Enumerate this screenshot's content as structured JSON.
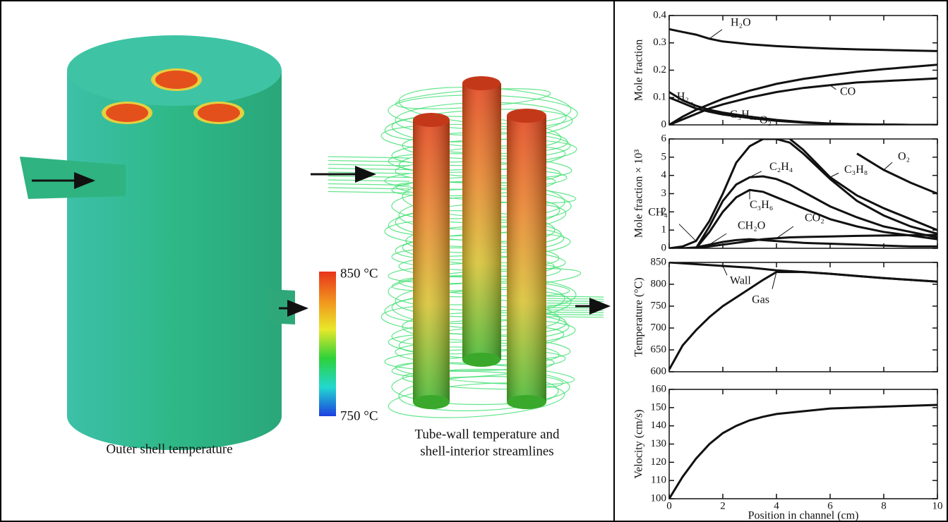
{
  "figure": {
    "shell_caption": "Outer shell temperature",
    "tubes_caption": [
      "Tube-wall temperature and",
      "shell-interior streamlines"
    ],
    "colorbar": {
      "max_label": "850 °C",
      "min_label": "750 °C"
    }
  },
  "chart_data": [
    {
      "type": "line",
      "ylabel": "Mole fraction",
      "x": [
        0,
        0.5,
        1,
        1.5,
        2,
        3,
        4,
        5,
        6,
        7,
        8,
        9,
        10
      ],
      "xlim": [
        0,
        10
      ],
      "xticks": [
        0,
        2,
        4,
        6,
        8,
        10
      ],
      "ylim": [
        0,
        0.4
      ],
      "yticks": [
        0,
        0.1,
        0.2,
        0.3,
        0.4
      ],
      "series": [
        {
          "name": "H₂O",
          "color": "#111111",
          "values": [
            0.35,
            0.34,
            0.33,
            0.315,
            0.305,
            0.295,
            0.288,
            0.283,
            0.279,
            0.276,
            0.274,
            0.272,
            0.27
          ]
        },
        {
          "name": "H₂",
          "color": "#111111",
          "values": [
            0,
            0.03,
            0.055,
            0.075,
            0.095,
            0.125,
            0.15,
            0.168,
            0.182,
            0.194,
            0.204,
            0.212,
            0.22
          ]
        },
        {
          "name": "CO",
          "color": "#111111",
          "values": [
            0,
            0.02,
            0.04,
            0.06,
            0.075,
            0.1,
            0.12,
            0.135,
            0.145,
            0.155,
            0.16,
            0.165,
            0.17
          ]
        },
        {
          "name": "C₃H₈",
          "color": "#111111",
          "values": [
            0.12,
            0.09,
            0.07,
            0.055,
            0.045,
            0.03,
            0.018,
            0.01,
            0.005,
            0.002,
            0.001,
            0,
            0
          ]
        },
        {
          "name": "O₂",
          "color": "#111111",
          "values": [
            0.1,
            0.08,
            0.06,
            0.048,
            0.038,
            0.025,
            0.015,
            0.008,
            0.004,
            0.002,
            0.001,
            0,
            0
          ]
        }
      ]
    },
    {
      "type": "line",
      "ylabel": "Mole fraction × 10³",
      "x": [
        0,
        0.5,
        1,
        1.5,
        2,
        2.5,
        3,
        3.5,
        4,
        4.5,
        5,
        6,
        7,
        8,
        9,
        10
      ],
      "xlim": [
        0,
        10
      ],
      "xticks": [
        0,
        2,
        4,
        6,
        8,
        10
      ],
      "ylim": [
        0,
        6
      ],
      "yticks": [
        0,
        1,
        2,
        3,
        4,
        5,
        6
      ],
      "series": [
        {
          "name": "CH₄",
          "color": "#111111",
          "values": [
            0,
            0.1,
            0.4,
            1.5,
            3,
            4.7,
            5.6,
            6,
            6,
            5.8,
            5.2,
            3.8,
            2.6,
            1.8,
            1.2,
            0.8
          ]
        },
        {
          "name": "C₂H₄",
          "color": "#111111",
          "values": [
            0,
            0,
            0,
            1.2,
            2.6,
            3.5,
            3.9,
            3.95,
            3.8,
            3.5,
            3.1,
            2.3,
            1.7,
            1.2,
            0.9,
            0.6
          ]
        },
        {
          "name": "C₃H₈",
          "color": "#111111",
          "values": [
            null,
            null,
            null,
            null,
            null,
            null,
            null,
            null,
            null,
            6,
            5.4,
            3.9,
            2.9,
            2.2,
            1.6,
            1
          ]
        },
        {
          "name": "O₂",
          "color": "#111111",
          "values": [
            null,
            null,
            null,
            null,
            null,
            null,
            null,
            null,
            null,
            null,
            null,
            null,
            5.2,
            4.3,
            3.6,
            3
          ]
        },
        {
          "name": "C₃H₆",
          "color": "#111111",
          "values": [
            0,
            0,
            0,
            0.9,
            2,
            2.8,
            3.2,
            3.1,
            2.8,
            2.5,
            2.2,
            1.6,
            1.2,
            0.9,
            0.7,
            0.5
          ]
        },
        {
          "name": "CH₂O",
          "color": "#111111",
          "values": [
            0,
            0,
            0.05,
            0.2,
            0.35,
            0.45,
            0.5,
            0.45,
            0.4,
            0.35,
            0.3,
            0.25,
            0.2,
            0.15,
            0.1,
            0.1
          ]
        },
        {
          "name": "CO₂",
          "color": "#111111",
          "values": [
            0,
            0,
            0,
            0.1,
            0.2,
            0.3,
            0.4,
            0.5,
            0.55,
            0.6,
            0.62,
            0.65,
            0.68,
            0.7,
            0.72,
            0.73
          ]
        }
      ]
    },
    {
      "type": "line",
      "ylabel": "Temperature (°C)",
      "x": [
        0,
        0.5,
        1,
        1.5,
        2,
        2.5,
        3,
        3.5,
        4,
        5,
        6,
        7,
        8,
        9,
        10
      ],
      "xlim": [
        0,
        10
      ],
      "xticks": [
        0,
        2,
        4,
        6,
        8,
        10
      ],
      "ylim": [
        600,
        850
      ],
      "yticks": [
        600,
        650,
        700,
        750,
        800,
        850
      ],
      "series": [
        {
          "name": "Wall",
          "color": "#111111",
          "values": [
            850,
            848,
            846,
            844,
            842,
            840,
            838,
            835,
            832,
            828,
            824,
            819,
            814,
            810,
            806
          ]
        },
        {
          "name": "Gas",
          "color": "#111111",
          "values": [
            605,
            660,
            695,
            725,
            750,
            770,
            790,
            810,
            828,
            828,
            824,
            819,
            814,
            810,
            806
          ]
        }
      ]
    },
    {
      "type": "line",
      "ylabel": "Velocity (cm/s)",
      "xlabel": "Position in channel (cm)",
      "x": [
        0,
        0.5,
        1,
        1.5,
        2,
        2.5,
        3,
        3.5,
        4,
        5,
        6,
        7,
        8,
        9,
        10
      ],
      "xlim": [
        0,
        10
      ],
      "xticks": [
        0,
        2,
        4,
        6,
        8,
        10
      ],
      "ylim": [
        100,
        160
      ],
      "yticks": [
        100,
        110,
        120,
        130,
        140,
        150,
        160
      ],
      "series": [
        {
          "color": "#111111",
          "values": [
            100,
            112,
            122,
            130,
            136,
            140,
            143,
            145,
            146.5,
            148,
            149.5,
            150,
            150.5,
            151,
            151.5
          ]
        }
      ]
    }
  ]
}
